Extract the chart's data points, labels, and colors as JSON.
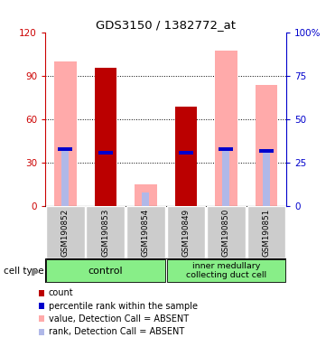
{
  "title": "GDS3150 / 1382772_at",
  "samples": [
    "GSM190852",
    "GSM190853",
    "GSM190854",
    "GSM190849",
    "GSM190850",
    "GSM190851"
  ],
  "value_absent": [
    100,
    0,
    15,
    0,
    108,
    84
  ],
  "count": [
    0,
    96,
    0,
    69,
    0,
    0
  ],
  "percentile_rank": [
    33,
    31,
    0,
    31,
    33,
    32
  ],
  "rank_absent": [
    33,
    0,
    8,
    0,
    33,
    32
  ],
  "ylim_left": [
    0,
    120
  ],
  "ylim_right": [
    0,
    100
  ],
  "yticks_left": [
    0,
    30,
    60,
    90,
    120
  ],
  "yticks_right": [
    0,
    25,
    50,
    75,
    100
  ],
  "bar_color_count": "#bb0000",
  "bar_color_value_absent": "#ffaaaa",
  "marker_color_percentile": "#0000cc",
  "bar_color_rank_absent": "#b0b8e8",
  "left_axis_color": "#cc0000",
  "right_axis_color": "#0000cc",
  "group_control_color": "#88ee88",
  "group_imcd_color": "#88ee88",
  "legend_items": [
    {
      "label": "count",
      "color": "#bb0000"
    },
    {
      "label": "percentile rank within the sample",
      "color": "#0000cc"
    },
    {
      "label": "value, Detection Call = ABSENT",
      "color": "#ffaaaa"
    },
    {
      "label": "rank, Detection Call = ABSENT",
      "color": "#b0b8e8"
    }
  ]
}
